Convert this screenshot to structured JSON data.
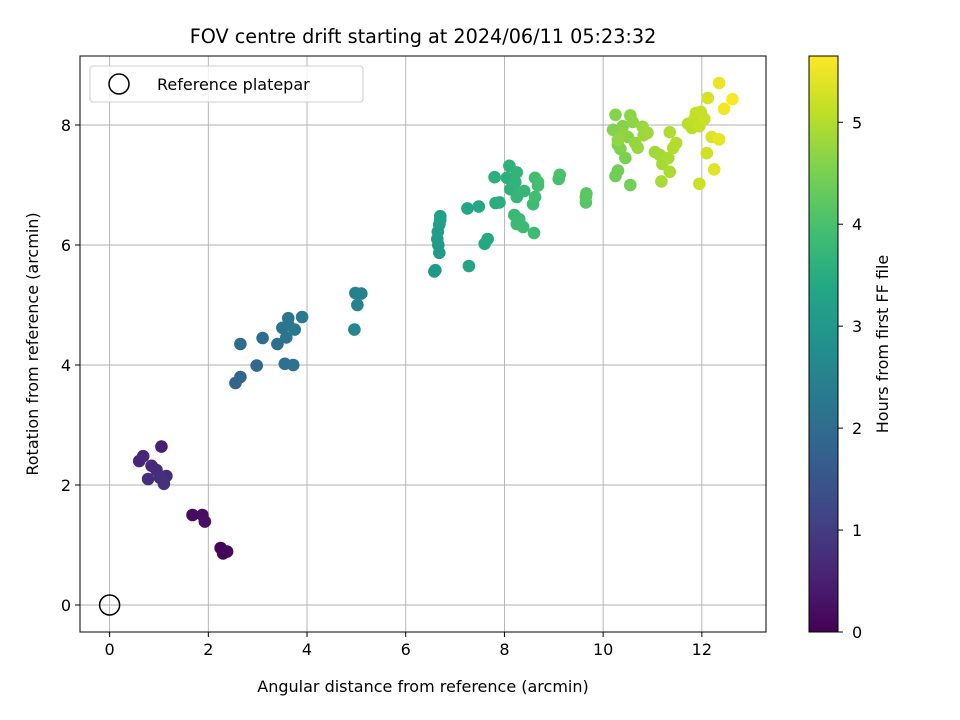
{
  "chart_data": {
    "type": "scatter",
    "title": "FOV centre drift starting at 2024/06/11 05:23:32",
    "xlabel": "Angular distance from reference (arcmin)",
    "ylabel": "Rotation from reference (arcmin)",
    "xlim": [
      -0.6,
      13.3
    ],
    "ylim": [
      -0.45,
      9.15
    ],
    "x_ticks": [
      0,
      2,
      4,
      6,
      8,
      10,
      12
    ],
    "y_ticks": [
      0,
      2,
      4,
      6,
      8
    ],
    "grid": true,
    "legend": {
      "position": "upper-left",
      "entries": [
        "Reference platepar"
      ]
    },
    "reference_point": {
      "x": 0,
      "y": 0,
      "label": "Reference platepar"
    },
    "colorbar": {
      "label": "Hours from first FF file",
      "range": [
        0,
        5.65
      ],
      "ticks": [
        0,
        1,
        2,
        3,
        4,
        5
      ],
      "colormap": "viridis"
    },
    "points": [
      {
        "x": 2.25,
        "y": 0.95,
        "c": 0.05
      },
      {
        "x": 2.3,
        "y": 0.86,
        "c": 0.08
      },
      {
        "x": 2.38,
        "y": 0.89,
        "c": 0.1
      },
      {
        "x": 1.68,
        "y": 1.5,
        "c": 0.2
      },
      {
        "x": 1.88,
        "y": 1.5,
        "c": 0.22
      },
      {
        "x": 1.93,
        "y": 1.39,
        "c": 0.25
      },
      {
        "x": 1.05,
        "y": 2.64,
        "c": 0.5
      },
      {
        "x": 0.6,
        "y": 2.4,
        "c": 0.6
      },
      {
        "x": 0.68,
        "y": 2.48,
        "c": 0.62
      },
      {
        "x": 0.85,
        "y": 2.32,
        "c": 0.65
      },
      {
        "x": 0.95,
        "y": 2.25,
        "c": 0.7
      },
      {
        "x": 1.15,
        "y": 2.15,
        "c": 0.72
      },
      {
        "x": 0.78,
        "y": 2.1,
        "c": 0.75
      },
      {
        "x": 1.02,
        "y": 2.12,
        "c": 0.78
      },
      {
        "x": 1.1,
        "y": 2.02,
        "c": 0.8
      },
      {
        "x": 2.55,
        "y": 3.7,
        "c": 1.8
      },
      {
        "x": 2.65,
        "y": 3.8,
        "c": 1.85
      },
      {
        "x": 2.98,
        "y": 3.99,
        "c": 1.9
      },
      {
        "x": 2.65,
        "y": 4.35,
        "c": 1.95
      },
      {
        "x": 3.1,
        "y": 4.45,
        "c": 2.0
      },
      {
        "x": 3.4,
        "y": 4.35,
        "c": 2.05
      },
      {
        "x": 3.55,
        "y": 4.02,
        "c": 2.1
      },
      {
        "x": 3.72,
        "y": 4.0,
        "c": 2.12
      },
      {
        "x": 3.5,
        "y": 4.62,
        "c": 2.15
      },
      {
        "x": 3.58,
        "y": 4.46,
        "c": 2.18
      },
      {
        "x": 3.62,
        "y": 4.67,
        "c": 2.2
      },
      {
        "x": 3.62,
        "y": 4.78,
        "c": 2.22
      },
      {
        "x": 3.75,
        "y": 4.59,
        "c": 2.25
      },
      {
        "x": 3.9,
        "y": 4.8,
        "c": 2.28
      },
      {
        "x": 4.98,
        "y": 5.2,
        "c": 2.45
      },
      {
        "x": 5.1,
        "y": 5.19,
        "c": 2.48
      },
      {
        "x": 5.02,
        "y": 5.0,
        "c": 2.5
      },
      {
        "x": 4.96,
        "y": 4.59,
        "c": 2.52
      },
      {
        "x": 6.58,
        "y": 5.56,
        "c": 3.0
      },
      {
        "x": 6.6,
        "y": 5.58,
        "c": 3.02
      },
      {
        "x": 6.68,
        "y": 5.87,
        "c": 3.05
      },
      {
        "x": 6.66,
        "y": 6.0,
        "c": 3.08
      },
      {
        "x": 6.64,
        "y": 6.1,
        "c": 3.1
      },
      {
        "x": 6.65,
        "y": 6.22,
        "c": 3.12
      },
      {
        "x": 6.68,
        "y": 6.34,
        "c": 3.15
      },
      {
        "x": 6.7,
        "y": 6.42,
        "c": 3.18
      },
      {
        "x": 6.7,
        "y": 6.48,
        "c": 3.2
      },
      {
        "x": 7.28,
        "y": 5.65,
        "c": 3.3
      },
      {
        "x": 7.25,
        "y": 6.61,
        "c": 3.35
      },
      {
        "x": 7.48,
        "y": 6.64,
        "c": 3.38
      },
      {
        "x": 7.6,
        "y": 6.02,
        "c": 3.4
      },
      {
        "x": 7.66,
        "y": 6.1,
        "c": 3.42
      },
      {
        "x": 7.82,
        "y": 6.7,
        "c": 3.5
      },
      {
        "x": 7.9,
        "y": 6.71,
        "c": 3.52
      },
      {
        "x": 7.8,
        "y": 7.13,
        "c": 3.55
      },
      {
        "x": 8.05,
        "y": 7.12,
        "c": 3.58
      },
      {
        "x": 8.1,
        "y": 7.32,
        "c": 3.6
      },
      {
        "x": 8.12,
        "y": 6.93,
        "c": 3.62
      },
      {
        "x": 8.22,
        "y": 7.05,
        "c": 3.65
      },
      {
        "x": 8.25,
        "y": 7.21,
        "c": 3.67
      },
      {
        "x": 8.3,
        "y": 6.87,
        "c": 3.7
      },
      {
        "x": 8.25,
        "y": 6.8,
        "c": 3.72
      },
      {
        "x": 8.4,
        "y": 6.9,
        "c": 3.75
      },
      {
        "x": 8.2,
        "y": 6.5,
        "c": 3.78
      },
      {
        "x": 8.3,
        "y": 6.43,
        "c": 3.8
      },
      {
        "x": 8.25,
        "y": 6.35,
        "c": 3.82
      },
      {
        "x": 8.38,
        "y": 6.3,
        "c": 3.84
      },
      {
        "x": 8.6,
        "y": 6.2,
        "c": 3.86
      },
      {
        "x": 8.58,
        "y": 6.68,
        "c": 3.88
      },
      {
        "x": 8.62,
        "y": 6.8,
        "c": 3.9
      },
      {
        "x": 8.68,
        "y": 6.99,
        "c": 3.92
      },
      {
        "x": 8.62,
        "y": 7.12,
        "c": 3.94
      },
      {
        "x": 8.68,
        "y": 7.05,
        "c": 3.96
      },
      {
        "x": 9.1,
        "y": 7.1,
        "c": 3.98
      },
      {
        "x": 9.12,
        "y": 7.17,
        "c": 4.0
      },
      {
        "x": 9.65,
        "y": 6.71,
        "c": 4.15
      },
      {
        "x": 9.65,
        "y": 6.8,
        "c": 4.18
      },
      {
        "x": 9.66,
        "y": 6.86,
        "c": 4.2
      },
      {
        "x": 10.25,
        "y": 7.15,
        "c": 4.4
      },
      {
        "x": 10.3,
        "y": 7.24,
        "c": 4.42
      },
      {
        "x": 10.55,
        "y": 7.0,
        "c": 4.45
      },
      {
        "x": 10.3,
        "y": 7.67,
        "c": 4.5
      },
      {
        "x": 10.45,
        "y": 7.45,
        "c": 4.52
      },
      {
        "x": 10.35,
        "y": 7.6,
        "c": 4.55
      },
      {
        "x": 10.2,
        "y": 7.92,
        "c": 4.58
      },
      {
        "x": 10.25,
        "y": 8.17,
        "c": 4.6
      },
      {
        "x": 10.4,
        "y": 7.98,
        "c": 4.62
      },
      {
        "x": 10.5,
        "y": 7.8,
        "c": 4.64
      },
      {
        "x": 10.55,
        "y": 8.16,
        "c": 4.66
      },
      {
        "x": 10.6,
        "y": 8.05,
        "c": 4.68
      },
      {
        "x": 10.4,
        "y": 7.85,
        "c": 4.7
      },
      {
        "x": 10.3,
        "y": 7.75,
        "c": 4.72
      },
      {
        "x": 10.65,
        "y": 7.7,
        "c": 4.74
      },
      {
        "x": 10.7,
        "y": 7.62,
        "c": 4.76
      },
      {
        "x": 10.8,
        "y": 7.97,
        "c": 4.78
      },
      {
        "x": 10.82,
        "y": 7.83,
        "c": 4.8
      },
      {
        "x": 10.9,
        "y": 7.87,
        "c": 4.82
      },
      {
        "x": 11.05,
        "y": 7.55,
        "c": 4.84
      },
      {
        "x": 11.15,
        "y": 7.5,
        "c": 4.86
      },
      {
        "x": 11.2,
        "y": 7.35,
        "c": 4.88
      },
      {
        "x": 11.18,
        "y": 7.06,
        "c": 4.9
      },
      {
        "x": 11.32,
        "y": 7.45,
        "c": 4.92
      },
      {
        "x": 11.35,
        "y": 7.22,
        "c": 4.94
      },
      {
        "x": 11.35,
        "y": 7.88,
        "c": 4.96
      },
      {
        "x": 11.42,
        "y": 7.62,
        "c": 4.98
      },
      {
        "x": 11.48,
        "y": 7.7,
        "c": 5.0
      },
      {
        "x": 11.72,
        "y": 8.02,
        "c": 5.05
      },
      {
        "x": 11.8,
        "y": 7.95,
        "c": 5.08
      },
      {
        "x": 11.85,
        "y": 8.1,
        "c": 5.1
      },
      {
        "x": 11.88,
        "y": 8.2,
        "c": 5.12
      },
      {
        "x": 11.95,
        "y": 7.98,
        "c": 5.14
      },
      {
        "x": 11.98,
        "y": 8.22,
        "c": 5.16
      },
      {
        "x": 12.05,
        "y": 8.1,
        "c": 5.18
      },
      {
        "x": 11.95,
        "y": 7.02,
        "c": 5.2
      },
      {
        "x": 12.1,
        "y": 7.53,
        "c": 5.25
      },
      {
        "x": 12.12,
        "y": 8.45,
        "c": 5.3
      },
      {
        "x": 12.2,
        "y": 7.8,
        "c": 5.35
      },
      {
        "x": 12.25,
        "y": 7.26,
        "c": 5.4
      },
      {
        "x": 12.35,
        "y": 7.76,
        "c": 5.45
      },
      {
        "x": 12.35,
        "y": 8.7,
        "c": 5.5
      },
      {
        "x": 12.45,
        "y": 8.27,
        "c": 5.55
      },
      {
        "x": 12.62,
        "y": 8.43,
        "c": 5.62
      }
    ]
  }
}
